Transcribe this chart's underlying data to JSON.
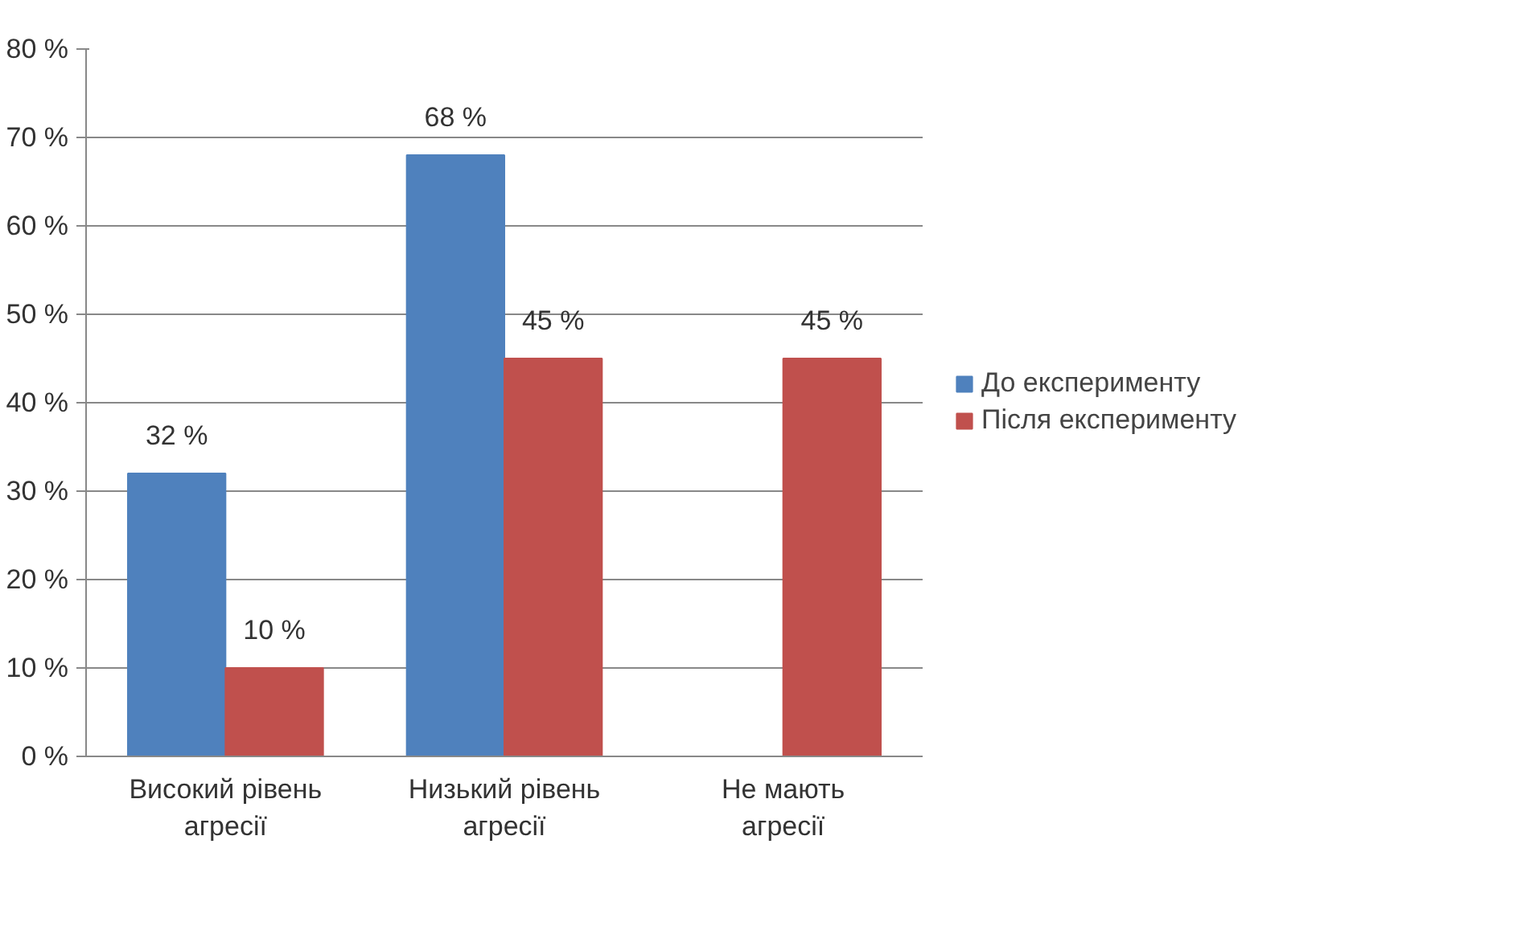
{
  "chart_data": {
    "type": "bar",
    "categories": [
      "Високий рівень агресії",
      "Низький рівень агресії",
      "Не мають агресії"
    ],
    "series": [
      {
        "name": "До експерименту",
        "color": "#4f81bd",
        "values": [
          32,
          68,
          null
        ],
        "value_labels": [
          "32 %",
          "68 %",
          null
        ]
      },
      {
        "name": "Після експерименту",
        "color": "#c0504d",
        "values": [
          10,
          45,
          45
        ],
        "value_labels": [
          "10 %",
          "45 %",
          "45 %"
        ]
      }
    ],
    "ylim": [
      0,
      80
    ],
    "yticks": [
      {
        "value": 0,
        "label": "0 %"
      },
      {
        "value": 10,
        "label": "10 %"
      },
      {
        "value": 20,
        "label": "20 %"
      },
      {
        "value": 30,
        "label": "30 %"
      },
      {
        "value": 40,
        "label": "40 %"
      },
      {
        "value": 50,
        "label": "50 %"
      },
      {
        "value": 60,
        "label": "60 %"
      },
      {
        "value": 70,
        "label": "70 %"
      },
      {
        "value": 80,
        "label": "80 %"
      }
    ],
    "grid": "y",
    "legend": "right"
  }
}
